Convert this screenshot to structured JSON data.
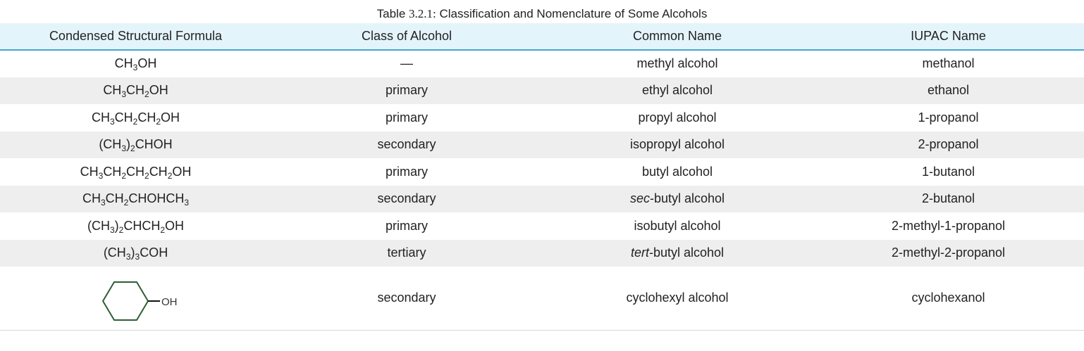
{
  "caption": {
    "prefix": "Table ",
    "number": "3.2.1:",
    "text": " Classification and Nomenclature of Some Alcohols"
  },
  "headers": [
    "Condensed Structural Formula",
    "Class of Alcohol",
    "Common Name",
    "IUPAC Name"
  ],
  "rows": [
    {
      "formula": [
        {
          "t": "CH"
        },
        {
          "s": "3"
        },
        {
          "t": "OH"
        }
      ],
      "class": "—",
      "common": [
        {
          "t": "methyl alcohol"
        }
      ],
      "iupac": "methanol"
    },
    {
      "formula": [
        {
          "t": "CH"
        },
        {
          "s": "3"
        },
        {
          "t": "CH"
        },
        {
          "s": "2"
        },
        {
          "t": "OH"
        }
      ],
      "class": "primary",
      "common": [
        {
          "t": "ethyl alcohol"
        }
      ],
      "iupac": "ethanol"
    },
    {
      "formula": [
        {
          "t": "CH"
        },
        {
          "s": "3"
        },
        {
          "t": "CH"
        },
        {
          "s": "2"
        },
        {
          "t": "CH"
        },
        {
          "s": "2"
        },
        {
          "t": "OH"
        }
      ],
      "class": "primary",
      "common": [
        {
          "t": "propyl alcohol"
        }
      ],
      "iupac": "1-propanol"
    },
    {
      "formula": [
        {
          "t": "(CH"
        },
        {
          "s": "3"
        },
        {
          "t": ")"
        },
        {
          "s": "2"
        },
        {
          "t": "CHOH"
        }
      ],
      "class": "secondary",
      "common": [
        {
          "t": "isopropyl alcohol"
        }
      ],
      "iupac": "2-propanol"
    },
    {
      "formula": [
        {
          "t": "CH"
        },
        {
          "s": "3"
        },
        {
          "t": "CH"
        },
        {
          "s": "2"
        },
        {
          "t": "CH"
        },
        {
          "s": "2"
        },
        {
          "t": "CH"
        },
        {
          "s": "2"
        },
        {
          "t": "OH"
        }
      ],
      "class": "primary",
      "common": [
        {
          "t": "butyl alcohol"
        }
      ],
      "iupac": "1-butanol"
    },
    {
      "formula": [
        {
          "t": "CH"
        },
        {
          "s": "3"
        },
        {
          "t": "CH"
        },
        {
          "s": "2"
        },
        {
          "t": "CHOHCH"
        },
        {
          "s": "3"
        }
      ],
      "class": "secondary",
      "common": [
        {
          "i": "sec"
        },
        {
          "t": "-butyl alcohol"
        }
      ],
      "iupac": "2-butanol"
    },
    {
      "formula": [
        {
          "t": "(CH"
        },
        {
          "s": "3"
        },
        {
          "t": ")"
        },
        {
          "s": "2"
        },
        {
          "t": "CHCH"
        },
        {
          "s": "2"
        },
        {
          "t": "OH"
        }
      ],
      "class": "primary",
      "common": [
        {
          "t": "isobutyl alcohol"
        }
      ],
      "iupac": "2-methyl-1-propanol"
    },
    {
      "formula": [
        {
          "t": "(CH"
        },
        {
          "s": "3"
        },
        {
          "t": ")"
        },
        {
          "s": "3"
        },
        {
          "t": "COH"
        }
      ],
      "class": "tertiary",
      "common": [
        {
          "i": "tert"
        },
        {
          "t": "-butyl alcohol"
        }
      ],
      "iupac": "2-methyl-2-propanol"
    },
    {
      "formula_image": {
        "label": "OH",
        "ring_color": "#2e5e34",
        "bond_color": "#111111"
      },
      "class": "secondary",
      "common": [
        {
          "t": "cyclohexyl alcohol"
        }
      ],
      "iupac": "cyclohexanol"
    }
  ]
}
